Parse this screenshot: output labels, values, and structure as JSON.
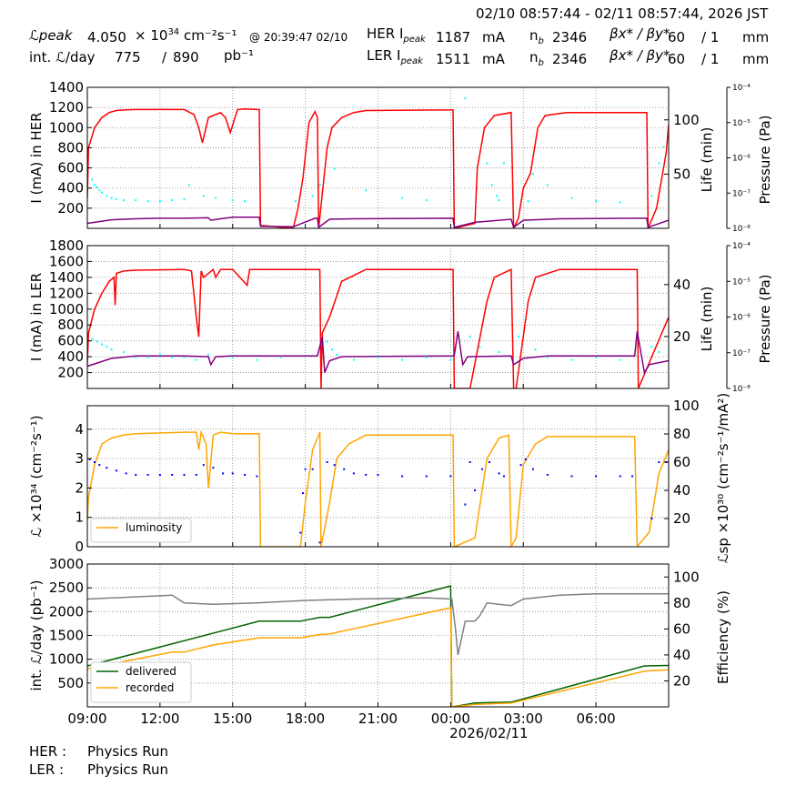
{
  "header": {
    "date_range": "02/10 08:57:44 - 02/11 08:57:44, 2026 JST",
    "lpeak_label": "ℒpeak",
    "lpeak_value": "4.050",
    "lpeak_unit_base": "× 10",
    "lpeak_unit_exp": "34",
    "lpeak_unit_tail": "cm⁻²s⁻¹",
    "lpeak_at": "@ 20:39:47 02/10",
    "int_label": "int. ℒ/day",
    "int_value1": "775",
    "int_slash": "/",
    "int_value2": "890",
    "int_unit": "pb⁻¹",
    "her_ipeak_label": "HER I",
    "her_ipeak_sub": "peak",
    "her_ipeak_value": "1187",
    "her_ipeak_unit": "mA",
    "ler_ipeak_label": "LER I",
    "ler_ipeak_sub": "peak",
    "ler_ipeak_value": "1511",
    "ler_ipeak_unit": "mA",
    "nb_label": "n",
    "nb_sub": "b",
    "her_nb": "2346",
    "ler_nb": "2346",
    "beta_label": "βx* / βy*",
    "her_beta_x": "60",
    "her_beta_y": "/ 1",
    "ler_beta_x": "60",
    "ler_beta_y": "/ 1",
    "beta_unit": "mm"
  },
  "footer": {
    "her_label": "HER :",
    "her_status": "Physics Run",
    "ler_label": "LER :",
    "ler_status": "Physics Run"
  },
  "chart_data": [
    {
      "type": "line",
      "name": "her",
      "ylabel": "I (mA) in HER",
      "ylim": [
        0,
        1400
      ],
      "yticks": [
        200,
        400,
        600,
        800,
        1000,
        1200,
        1400
      ],
      "y2label": "Life (min)",
      "y2lim": [
        0,
        130
      ],
      "y2ticks": [
        50,
        100
      ],
      "y3label": "Pressure (Pa)",
      "y3ticks": [
        "10⁻⁸",
        "10⁻⁷",
        "10⁻⁶",
        "10⁻⁵",
        "10⁻⁴"
      ],
      "xlim": [
        9,
        33
      ],
      "grid": true,
      "series": [
        {
          "color": "#ff0000",
          "x": [
            9,
            9.05,
            9.3,
            9.6,
            9.9,
            10.2,
            10.5,
            11,
            13,
            13.4,
            13.6,
            13.75,
            14.0,
            14.2,
            14.5,
            14.7,
            14.9,
            15.2,
            15.5,
            16,
            16.1,
            16.15,
            17.5,
            17.7,
            17.9,
            18.15,
            18.4,
            18.5,
            18.55,
            18.9,
            19.1,
            19.5,
            20.0,
            20.5,
            23.5,
            24.1,
            24.15,
            25.0,
            25.1,
            25.4,
            25.8,
            26.5,
            26.6,
            26.8,
            27.0,
            27.3,
            27.6,
            27.9,
            28.5,
            28.8,
            31.6,
            32.1,
            32.15,
            32.5,
            32.9,
            33
          ],
          "y": [
            300,
            800,
            1000,
            1100,
            1150,
            1170,
            1175,
            1180,
            1180,
            1130,
            1000,
            850,
            1100,
            1120,
            1150,
            1100,
            950,
            1180,
            1185,
            1180,
            1180,
            30,
            0,
            200,
            500,
            1050,
            1160,
            1100,
            0,
            800,
            1000,
            1100,
            1150,
            1170,
            1175,
            1175,
            0,
            50,
            600,
            1000,
            1120,
            1150,
            0,
            100,
            400,
            550,
            1000,
            1120,
            1140,
            1150,
            1150,
            1150,
            0,
            200,
            750,
            1030
          ]
        },
        {
          "color": "#800080",
          "x": [
            9,
            10,
            11,
            12,
            13,
            14,
            14.1,
            14.5,
            15,
            16.1,
            16.15,
            17.5,
            18.4,
            18.5,
            18.55,
            19,
            20,
            24.1,
            24.15,
            25,
            26.5,
            26.6,
            27,
            28.5,
            31.6,
            32.1,
            32.15,
            33
          ],
          "y": [
            50,
            85,
            95,
            100,
            100,
            105,
            80,
            95,
            110,
            110,
            20,
            15,
            100,
            100,
            10,
            90,
            95,
            100,
            10,
            60,
            90,
            10,
            80,
            95,
            100,
            100,
            10,
            80
          ]
        },
        {
          "color": "#00ffff",
          "scatter": true,
          "x": [
            9.2,
            9.3,
            9.4,
            9.5,
            9.6,
            9.8,
            10.0,
            10.2,
            10.5,
            11.0,
            11.5,
            12.0,
            12.5,
            13.0,
            13.2,
            13.8,
            14.3,
            15.0,
            15.5,
            17.6,
            18.3,
            18.6,
            19.2,
            20.5,
            22.0,
            23.0,
            24.6,
            25.5,
            25.7,
            25.9,
            26.0,
            26.2,
            27.2,
            27.4,
            28.0,
            29.0,
            30.0,
            31.0,
            32.3,
            32.6,
            32.8
          ],
          "y": [
            45,
            40,
            38,
            35,
            33,
            30,
            28,
            27,
            26,
            26,
            25,
            25,
            26,
            27,
            40,
            30,
            28,
            26,
            25,
            25,
            30,
            40,
            55,
            35,
            28,
            26,
            120,
            60,
            40,
            30,
            26,
            60,
            25,
            50,
            40,
            28,
            25,
            24,
            30,
            60,
            75
          ]
        }
      ]
    },
    {
      "type": "line",
      "name": "ler",
      "ylabel": "I (mA) in LER",
      "ylim": [
        0,
        1800
      ],
      "yticks": [
        200,
        400,
        600,
        800,
        1000,
        1200,
        1400,
        1600,
        1800
      ],
      "y2label": "Life (min)",
      "y2lim": [
        0,
        55
      ],
      "y2ticks": [
        20,
        40
      ],
      "y3label": "Pressure (Pa)",
      "y3ticks": [
        "10⁻⁸",
        "10⁻⁷",
        "10⁻⁶",
        "10⁻⁵",
        "10⁻⁴"
      ],
      "xlim": [
        9,
        33
      ],
      "grid": true,
      "series": [
        {
          "color": "#ff0000",
          "x": [
            9,
            9.05,
            9.3,
            9.6,
            9.9,
            10.1,
            10.15,
            10.2,
            10.5,
            11,
            13,
            13.3,
            13.5,
            13.6,
            13.7,
            13.8,
            14.2,
            14.3,
            14.5,
            15,
            15.6,
            15.7,
            16.1,
            16.15,
            16.5,
            17,
            18.6,
            18.65,
            18.7,
            19,
            19.5,
            20.5,
            24.1,
            24.15,
            24.8,
            25.5,
            25.8,
            26.5,
            26.6,
            26.7,
            27.2,
            27.5,
            28.5,
            31.7,
            31.75,
            33
          ],
          "y": [
            300,
            700,
            1000,
            1200,
            1350,
            1400,
            1050,
            1450,
            1480,
            1490,
            1500,
            1480,
            900,
            650,
            1480,
            1400,
            1500,
            1400,
            1500,
            1500,
            1300,
            1500,
            1500,
            1500,
            1500,
            1500,
            1500,
            0,
            700,
            900,
            1350,
            1500,
            1500,
            0,
            0,
            1100,
            1400,
            1500,
            0,
            0,
            1100,
            1400,
            1500,
            1500,
            0,
            900
          ]
        },
        {
          "color": "#800080",
          "x": [
            9,
            10,
            11,
            12,
            13,
            14,
            14.1,
            14.3,
            15,
            18.5,
            18.7,
            18.8,
            19,
            19.5,
            24.1,
            24.15,
            24.3,
            24.5,
            24.7,
            26.5,
            26.6,
            27,
            28,
            31.6,
            31.7,
            32.0,
            32.2,
            33
          ],
          "y": [
            280,
            380,
            410,
            410,
            410,
            400,
            300,
            400,
            410,
            410,
            650,
            200,
            350,
            400,
            410,
            420,
            720,
            300,
            400,
            410,
            300,
            380,
            410,
            410,
            720,
            200,
            300,
            350
          ]
        },
        {
          "color": "#00ffff",
          "scatter": true,
          "x": [
            9.2,
            9.4,
            9.6,
            9.8,
            10.0,
            10.5,
            11.0,
            11.5,
            12.0,
            12.5,
            13.0,
            13.5,
            14.0,
            15.0,
            16.0,
            17.0,
            18.9,
            19.1,
            19.3,
            20.0,
            21.0,
            22.0,
            23.0,
            24.0,
            24.8,
            25.2,
            26.0,
            26.8,
            27.5,
            28.0,
            29.0,
            30.0,
            31.0,
            32.3,
            32.6
          ],
          "y": [
            19,
            18,
            17,
            16,
            15,
            14,
            12,
            12,
            13,
            12,
            12,
            11,
            13,
            12,
            11,
            12,
            18,
            15,
            13,
            11,
            12,
            11,
            12,
            11,
            20,
            16,
            14,
            20,
            15,
            12,
            11,
            12,
            11,
            16,
            14
          ]
        }
      ]
    },
    {
      "type": "line",
      "name": "lumi",
      "ylabel": "ℒ ×10³⁴ (cm⁻²s⁻¹)",
      "ylim": [
        0,
        4.8
      ],
      "yticks": [
        0,
        1,
        2,
        3,
        4
      ],
      "y2label": "ℒsp ×10³⁰ (cm⁻²s⁻¹/mA²)",
      "y2lim": [
        0,
        100
      ],
      "y2ticks": [
        20,
        40,
        60,
        80,
        100
      ],
      "xlim": [
        9,
        33
      ],
      "grid": true,
      "legend": "bottom-left",
      "series": [
        {
          "name": "luminosity",
          "color": "#ffa500",
          "x": [
            9,
            9.05,
            9.3,
            9.6,
            10.0,
            10.5,
            11,
            13,
            13.5,
            13.6,
            13.7,
            13.9,
            14.0,
            14.2,
            14.5,
            15,
            16.1,
            16.15,
            17.8,
            18.0,
            18.3,
            18.6,
            18.65,
            19.0,
            19.3,
            19.8,
            20.5,
            24.1,
            24.15,
            25.0,
            25.5,
            26.0,
            26.4,
            26.5,
            26.7,
            27.0,
            27.5,
            28.0,
            31.6,
            31.7,
            32.2,
            32.6,
            33
          ],
          "y": [
            0.9,
            1.7,
            2.8,
            3.5,
            3.7,
            3.8,
            3.85,
            3.9,
            3.9,
            3.3,
            3.9,
            3.5,
            2.0,
            3.8,
            3.9,
            3.85,
            3.85,
            0,
            0,
            1.5,
            3.3,
            3.9,
            0,
            1.5,
            3.0,
            3.5,
            3.8,
            3.8,
            0,
            0.3,
            3.0,
            3.7,
            3.8,
            0,
            0.3,
            2.8,
            3.5,
            3.75,
            3.75,
            0,
            0.5,
            2.5,
            3.3
          ]
        },
        {
          "color": "#0000ff",
          "scatter": true,
          "x": [
            9.1,
            9.3,
            9.5,
            9.8,
            10.2,
            10.6,
            11.0,
            11.5,
            12.0,
            12.5,
            13.0,
            13.5,
            13.8,
            14.2,
            14.6,
            15.0,
            15.5,
            16.0,
            17.8,
            17.9,
            18.0,
            18.3,
            18.6,
            18.9,
            19.2,
            19.6,
            20.0,
            20.5,
            21.0,
            22.0,
            23.0,
            24.0,
            24.6,
            24.8,
            25.0,
            25.3,
            25.6,
            26.0,
            26.2,
            26.9,
            27.1,
            27.4,
            28.0,
            29.0,
            30.0,
            31.0,
            31.5,
            32.3,
            32.6,
            32.9
          ],
          "y": [
            62,
            60,
            58,
            56,
            54,
            52,
            51,
            51,
            51,
            51,
            51,
            51,
            58,
            56,
            52,
            52,
            51,
            50,
            10,
            38,
            55,
            55,
            3,
            60,
            58,
            55,
            52,
            51,
            51,
            50,
            50,
            50,
            30,
            60,
            40,
            55,
            60,
            52,
            50,
            58,
            62,
            55,
            51,
            50,
            50,
            50,
            50,
            20,
            60,
            60
          ]
        }
      ]
    },
    {
      "type": "line",
      "name": "integrated",
      "ylabel": "int. ℒ/day (pb⁻¹)",
      "ylim": [
        0,
        3000
      ],
      "yticks": [
        500,
        1000,
        1500,
        2000,
        2500,
        3000
      ],
      "y2label": "Efficiency (%)",
      "y2lim": [
        0,
        110
      ],
      "y2ticks": [
        20,
        40,
        60,
        80,
        100
      ],
      "xlim": [
        9,
        33
      ],
      "xticks": [
        9,
        12,
        15,
        18,
        21,
        24,
        27,
        30
      ],
      "xticklabels": [
        "09:00",
        "12:00",
        "15:00",
        "18:00",
        "21:00",
        "00:00",
        "03:00",
        "06:00"
      ],
      "xlabel": "2026/02/11",
      "grid": true,
      "legend": "bottom-left",
      "series": [
        {
          "name": "delivered",
          "color": "#006400",
          "x": [
            9,
            16.1,
            17.8,
            18.6,
            19.0,
            24.0,
            24.05,
            25.0,
            26.5,
            32.0,
            33
          ],
          "y": [
            860,
            1800,
            1800,
            1880,
            1880,
            2540,
            0,
            80,
            100,
            860,
            870
          ]
        },
        {
          "name": "recorded",
          "color": "#ffa500",
          "x": [
            9,
            12.5,
            13.0,
            14.2,
            16.1,
            17.8,
            18.6,
            19.0,
            24.0,
            24.05,
            25.0,
            26.5,
            32.0,
            33
          ],
          "y": [
            800,
            1150,
            1150,
            1300,
            1450,
            1450,
            1520,
            1530,
            2080,
            0,
            50,
            80,
            750,
            780
          ]
        },
        {
          "color": "#808080",
          "y2": true,
          "x": [
            9,
            12.5,
            13.0,
            14.2,
            16,
            18,
            20,
            23,
            24.05,
            24.2,
            24.3,
            24.6,
            25,
            25.2,
            25.5,
            26.5,
            27,
            28.5,
            30,
            33
          ],
          "y": [
            83,
            86,
            80,
            79,
            80,
            82,
            83,
            84,
            83,
            60,
            40,
            66,
            66,
            70,
            80,
            78,
            83,
            86,
            87,
            87
          ]
        }
      ]
    }
  ]
}
